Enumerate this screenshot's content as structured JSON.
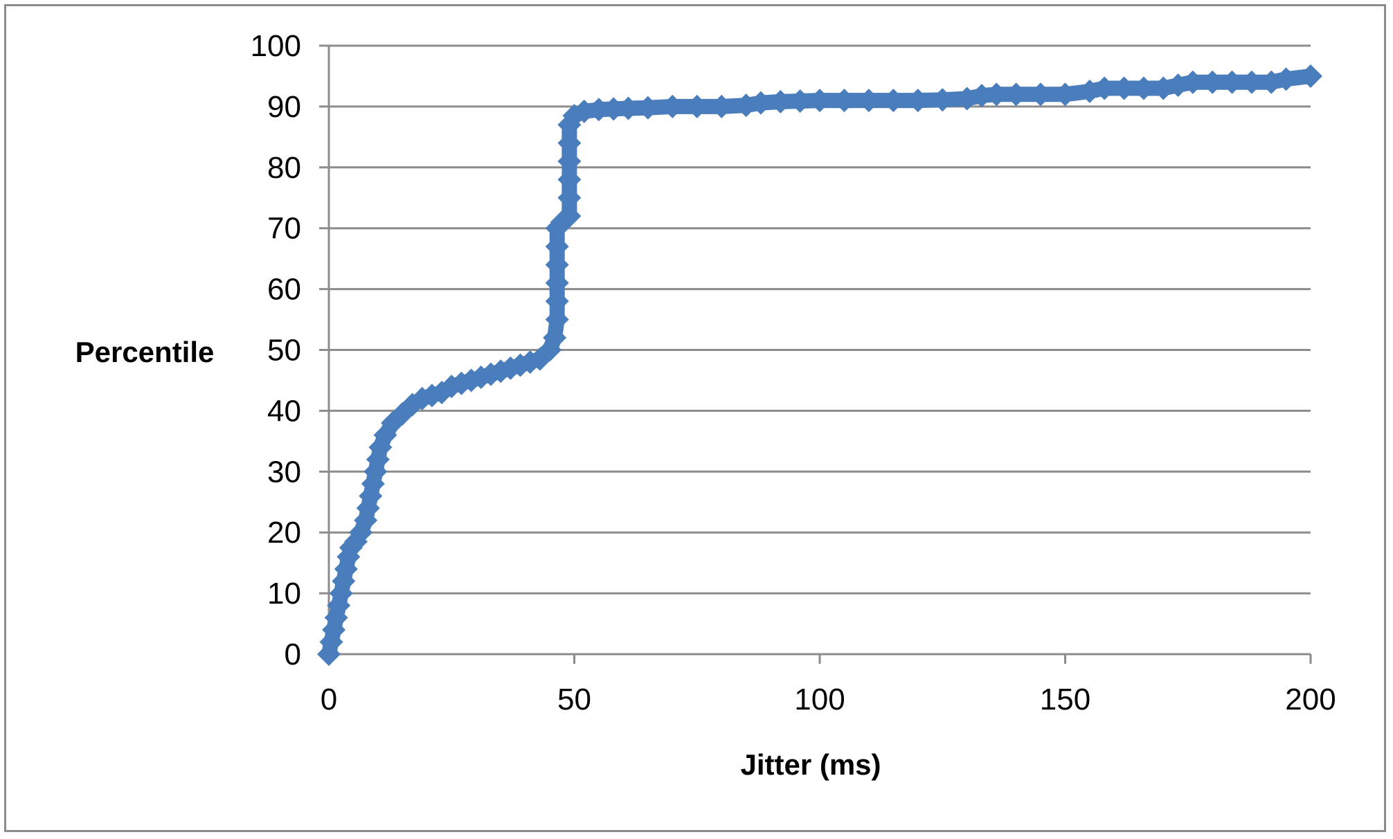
{
  "chart_data": {
    "type": "scatter",
    "title": "",
    "xlabel": "Jitter (ms)",
    "ylabel": "Percentile",
    "xlim": [
      0,
      200
    ],
    "ylim": [
      0,
      100
    ],
    "xticks": [
      0,
      50,
      100,
      150,
      200
    ],
    "yticks": [
      0,
      10,
      20,
      30,
      40,
      50,
      60,
      70,
      80,
      90,
      100
    ],
    "grid": "horizontal",
    "legend": "none",
    "marker": "diamond",
    "series_color": "#4a7dbb",
    "gridline_color": "#8c8c8c",
    "series": [
      {
        "points": [
          [
            0,
            0
          ],
          [
            0.5,
            2
          ],
          [
            1,
            4
          ],
          [
            1.5,
            6
          ],
          [
            2,
            8
          ],
          [
            2.5,
            10
          ],
          [
            3,
            12
          ],
          [
            3.5,
            14
          ],
          [
            4,
            16
          ],
          [
            4.5,
            17.5
          ],
          [
            5.5,
            18.5
          ],
          [
            6.5,
            20
          ],
          [
            7.5,
            22
          ],
          [
            8,
            24
          ],
          [
            8.5,
            26
          ],
          [
            9,
            28
          ],
          [
            9.5,
            30
          ],
          [
            10,
            32
          ],
          [
            10.5,
            34
          ],
          [
            11.5,
            36
          ],
          [
            13,
            38
          ],
          [
            15,
            39.5
          ],
          [
            17,
            41
          ],
          [
            19,
            42
          ],
          [
            21,
            42.5
          ],
          [
            23,
            43
          ],
          [
            25,
            44
          ],
          [
            27,
            44.5
          ],
          [
            29,
            45
          ],
          [
            31,
            45.5
          ],
          [
            33,
            46
          ],
          [
            35,
            46.5
          ],
          [
            37,
            47
          ],
          [
            39,
            47.5
          ],
          [
            41,
            48
          ],
          [
            43,
            48.5
          ],
          [
            45,
            50
          ],
          [
            46,
            52
          ],
          [
            46.5,
            55
          ],
          [
            46.5,
            58
          ],
          [
            46.5,
            61
          ],
          [
            46.5,
            64
          ],
          [
            46.5,
            67
          ],
          [
            46.5,
            70
          ],
          [
            47.5,
            71
          ],
          [
            49,
            72
          ],
          [
            49,
            75
          ],
          [
            49,
            78
          ],
          [
            49,
            81
          ],
          [
            49,
            84
          ],
          [
            49,
            87
          ],
          [
            50,
            88.5
          ],
          [
            52,
            89.2
          ],
          [
            55,
            89.5
          ],
          [
            58,
            89.6
          ],
          [
            61,
            89.7
          ],
          [
            65,
            89.8
          ],
          [
            70,
            90
          ],
          [
            75,
            90
          ],
          [
            80,
            90
          ],
          [
            85,
            90.2
          ],
          [
            88,
            90.6
          ],
          [
            92,
            90.8
          ],
          [
            96,
            90.9
          ],
          [
            100,
            91
          ],
          [
            105,
            91
          ],
          [
            110,
            91
          ],
          [
            115,
            91
          ],
          [
            120,
            91
          ],
          [
            125,
            91.1
          ],
          [
            130,
            91.3
          ],
          [
            133,
            91.8
          ],
          [
            136,
            92
          ],
          [
            140,
            92
          ],
          [
            145,
            92
          ],
          [
            150,
            92
          ],
          [
            155,
            92.5
          ],
          [
            158,
            93
          ],
          [
            162,
            93
          ],
          [
            166,
            93
          ],
          [
            170,
            93
          ],
          [
            173,
            93.5
          ],
          [
            176,
            94
          ],
          [
            180,
            94
          ],
          [
            184,
            94
          ],
          [
            188,
            94
          ],
          [
            192,
            94
          ],
          [
            195,
            94.5
          ],
          [
            200,
            95
          ]
        ]
      }
    ]
  }
}
